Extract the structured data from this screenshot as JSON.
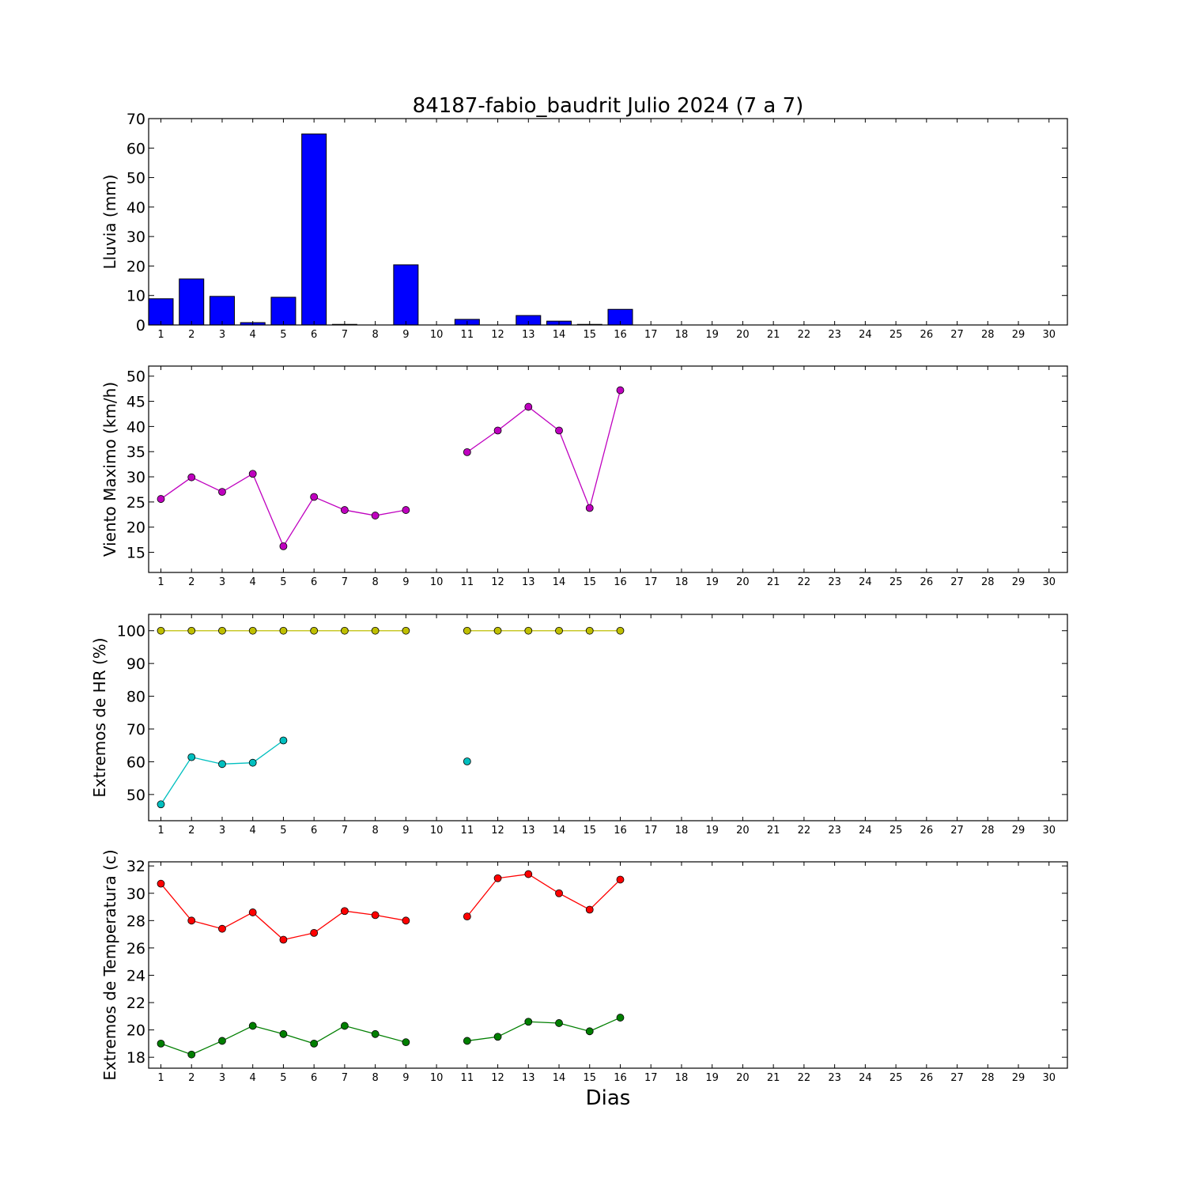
{
  "title": "84187-fabio_baudrit Julio 2024  (7 a 7)",
  "xlabel": "Dias",
  "days": [
    1,
    2,
    3,
    4,
    5,
    6,
    7,
    8,
    9,
    10,
    11,
    12,
    13,
    14,
    15,
    16,
    17,
    18,
    19,
    20,
    21,
    22,
    23,
    24,
    25,
    26,
    27,
    28,
    29,
    30
  ],
  "chart_data": [
    {
      "type": "bar",
      "ylabel": "Lluvia (mm)",
      "ylim": [
        0,
        70
      ],
      "yticks": [
        0,
        10,
        20,
        30,
        40,
        50,
        60,
        70
      ],
      "series": [
        {
          "color": "#0000ff",
          "x": [
            1,
            2,
            3,
            4,
            5,
            6,
            7,
            8,
            9,
            10,
            11,
            12,
            13,
            14,
            15,
            16,
            17,
            18,
            19,
            20,
            21,
            22,
            23,
            24,
            25,
            26,
            27,
            28,
            29,
            30
          ],
          "values": [
            8.9,
            15.6,
            9.7,
            0.8,
            9.4,
            64.8,
            0.2,
            0,
            20.4,
            0,
            1.9,
            0,
            3.2,
            1.3,
            0.2,
            5.3,
            0,
            0,
            0,
            0,
            0,
            0,
            0,
            0,
            0,
            0,
            0,
            0,
            0,
            0
          ]
        }
      ]
    },
    {
      "type": "line",
      "ylabel": "Viento Maximo (km/h)",
      "ylim": [
        11,
        52
      ],
      "yticks": [
        15,
        20,
        25,
        30,
        35,
        40,
        45,
        50
      ],
      "series": [
        {
          "color": "#bf00bf",
          "x": [
            1,
            2,
            3,
            4,
            5,
            6,
            7,
            8,
            9,
            10,
            11,
            12,
            13,
            14,
            15,
            16
          ],
          "values": [
            25.6,
            29.9,
            27.0,
            30.6,
            16.2,
            26.0,
            23.4,
            22.3,
            23.4,
            null,
            34.9,
            39.2,
            43.9,
            39.2,
            23.8,
            47.2
          ]
        }
      ]
    },
    {
      "type": "line",
      "ylabel": "Extremos de HR (%)",
      "ylim": [
        42,
        105
      ],
      "yticks": [
        50,
        60,
        70,
        80,
        90,
        100
      ],
      "series": [
        {
          "color": "#bfbf00",
          "x": [
            1,
            2,
            3,
            4,
            5,
            6,
            7,
            8,
            9,
            10,
            11,
            12,
            13,
            14,
            15,
            16
          ],
          "values": [
            100,
            100,
            100,
            100,
            100,
            100,
            100,
            100,
            100,
            null,
            100,
            100,
            100,
            100,
            100,
            100
          ]
        },
        {
          "color": "#00bfbf",
          "x": [
            1,
            2,
            3,
            4,
            5,
            6,
            7,
            8,
            9,
            10,
            11,
            12,
            13,
            14,
            15,
            16
          ],
          "values": [
            47,
            61.4,
            59.3,
            59.7,
            66.5,
            null,
            null,
            null,
            null,
            null,
            60.1,
            null,
            null,
            null,
            null,
            null
          ]
        }
      ]
    },
    {
      "type": "line",
      "ylabel": "Extremos de Temperatura (c)",
      "ylim": [
        17.2,
        32.3
      ],
      "yticks": [
        18,
        20,
        22,
        24,
        26,
        28,
        30,
        32
      ],
      "series": [
        {
          "color": "#ff0000",
          "x": [
            1,
            2,
            3,
            4,
            5,
            6,
            7,
            8,
            9,
            10,
            11,
            12,
            13,
            14,
            15,
            16
          ],
          "values": [
            30.7,
            28.0,
            27.4,
            28.6,
            26.6,
            27.1,
            28.7,
            28.4,
            28.0,
            null,
            28.3,
            31.1,
            31.4,
            30.0,
            28.8,
            31.0
          ]
        },
        {
          "color": "#007f00",
          "x": [
            1,
            2,
            3,
            4,
            5,
            6,
            7,
            8,
            9,
            10,
            11,
            12,
            13,
            14,
            15,
            16
          ],
          "values": [
            19.0,
            18.2,
            19.2,
            20.3,
            19.7,
            19.0,
            20.3,
            19.7,
            19.1,
            null,
            19.2,
            19.5,
            20.6,
            20.5,
            19.9,
            20.9
          ]
        }
      ]
    }
  ]
}
